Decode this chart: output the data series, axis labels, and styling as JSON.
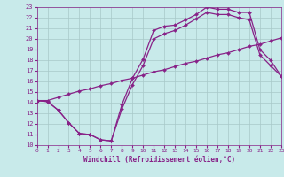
{
  "xlabel": "Windchill (Refroidissement éolien,°C)",
  "bg_color": "#c8eaea",
  "grid_color": "#a8c8c8",
  "line_color": "#882288",
  "xmin": 0,
  "xmax": 23,
  "ymin": 10,
  "ymax": 23,
  "line1_x": [
    0,
    1,
    2,
    3,
    4,
    5,
    6,
    7,
    8,
    9,
    10,
    11,
    12,
    13,
    14,
    15,
    16,
    17,
    18,
    19,
    20,
    21,
    22,
    23
  ],
  "line1_y": [
    14.2,
    14.1,
    13.3,
    12.1,
    11.1,
    11.0,
    10.5,
    10.4,
    13.8,
    16.3,
    18.1,
    20.8,
    21.2,
    21.3,
    21.8,
    22.3,
    23.0,
    22.8,
    22.8,
    22.5,
    22.5,
    19.0,
    18.0,
    16.5
  ],
  "line2_x": [
    0,
    1,
    2,
    3,
    4,
    5,
    6,
    7,
    8,
    9,
    10,
    11,
    12,
    13,
    14,
    15,
    16,
    17,
    18,
    19,
    20,
    21,
    22,
    23
  ],
  "line2_y": [
    14.2,
    14.2,
    14.5,
    14.8,
    15.1,
    15.3,
    15.6,
    15.8,
    16.1,
    16.3,
    16.6,
    16.9,
    17.1,
    17.4,
    17.7,
    17.9,
    18.2,
    18.5,
    18.7,
    19.0,
    19.3,
    19.5,
    19.8,
    20.1
  ],
  "line3_x": [
    0,
    1,
    2,
    3,
    4,
    5,
    6,
    7,
    8,
    9,
    10,
    11,
    12,
    13,
    14,
    15,
    16,
    17,
    18,
    19,
    20,
    21,
    22,
    23
  ],
  "line3_y": [
    14.2,
    14.1,
    13.3,
    12.1,
    11.1,
    11.0,
    10.5,
    10.4,
    13.4,
    15.7,
    17.5,
    20.0,
    20.5,
    20.8,
    21.3,
    21.9,
    22.5,
    22.3,
    22.3,
    22.0,
    21.8,
    18.5,
    17.5,
    16.5
  ],
  "xtick_labels": [
    "0",
    "1",
    "2",
    "3",
    "4",
    "5",
    "6",
    "7",
    "8",
    "9",
    "10",
    "11",
    "12",
    "13",
    "14",
    "15",
    "16",
    "17",
    "18",
    "19",
    "20",
    "21",
    "22",
    "23"
  ],
  "ytick_labels": [
    "10",
    "11",
    "12",
    "13",
    "14",
    "15",
    "16",
    "17",
    "18",
    "19",
    "20",
    "21",
    "22",
    "23"
  ]
}
